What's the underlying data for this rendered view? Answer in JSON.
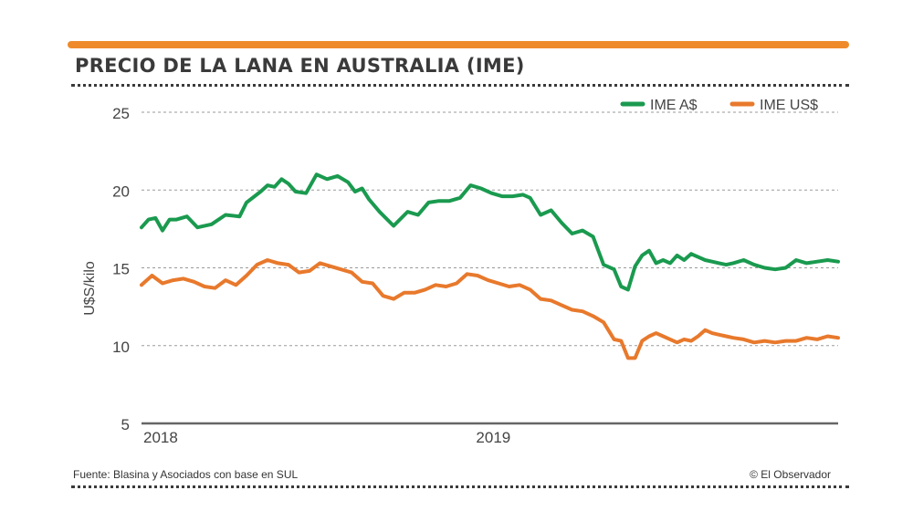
{
  "title": "PRECIO DE LA LANA EN AUSTRALIA (IME)",
  "source": "Fuente: Blasina y Asociados con base en SUL",
  "credit": "© El Observador",
  "colors": {
    "bar": "#ef8a2a",
    "green": "#1a9a4f",
    "orange": "#e8792c",
    "grid": "#9a9a9a",
    "axis": "#666666"
  },
  "chart_data": {
    "type": "line",
    "ylabel": "U$S/kilo",
    "xlabel": "",
    "ylim": [
      5,
      25
    ],
    "yticks": [
      5,
      10,
      15,
      20,
      25
    ],
    "xlim": [
      2018.0,
      2019.99
    ],
    "xticks": [
      {
        "value": 2018.0,
        "label": "2018"
      },
      {
        "value": 2019.0,
        "label": "2019"
      }
    ],
    "grid": true,
    "legend_position": "top-right",
    "series": [
      {
        "name": "IME A$",
        "color": "#1a9a4f",
        "x": [
          2018.0,
          2018.02,
          2018.04,
          2018.06,
          2018.08,
          2018.1,
          2018.13,
          2018.16,
          2018.2,
          2018.24,
          2018.28,
          2018.3,
          2018.34,
          2018.36,
          2018.38,
          2018.4,
          2018.42,
          2018.44,
          2018.47,
          2018.5,
          2018.53,
          2018.56,
          2018.59,
          2018.61,
          2018.63,
          2018.65,
          2018.68,
          2018.72,
          2018.76,
          2018.79,
          2018.82,
          2018.85,
          2018.88,
          2018.91,
          2018.94,
          2018.97,
          2019.0,
          2019.03,
          2019.06,
          2019.09,
          2019.11,
          2019.14,
          2019.17,
          2019.2,
          2019.23,
          2019.26,
          2019.29,
          2019.32,
          2019.35,
          2019.37,
          2019.39,
          2019.41,
          2019.43,
          2019.45,
          2019.47,
          2019.49,
          2019.51,
          2019.53,
          2019.55,
          2019.57,
          2019.59,
          2019.61,
          2019.63,
          2019.65,
          2019.67,
          2019.69,
          2019.72,
          2019.75,
          2019.78,
          2019.81,
          2019.84,
          2019.87,
          2019.9,
          2019.93,
          2019.96,
          2019.99
        ],
        "values": [
          17.6,
          18.1,
          18.2,
          17.4,
          18.1,
          18.1,
          18.3,
          17.6,
          17.8,
          18.4,
          18.3,
          19.2,
          19.9,
          20.3,
          20.2,
          20.7,
          20.4,
          19.9,
          19.8,
          21.0,
          20.7,
          20.9,
          20.5,
          19.9,
          20.1,
          19.4,
          18.6,
          17.7,
          18.6,
          18.4,
          19.2,
          19.3,
          19.3,
          19.5,
          20.3,
          20.1,
          19.8,
          19.6,
          19.6,
          19.7,
          19.5,
          18.4,
          18.7,
          17.9,
          17.2,
          17.4,
          17.0,
          15.2,
          14.9,
          13.8,
          13.6,
          15.1,
          15.8,
          16.1,
          15.3,
          15.5,
          15.3,
          15.8,
          15.5,
          15.9,
          15.7,
          15.5,
          15.4,
          15.3,
          15.2,
          15.3,
          15.5,
          15.2,
          15.0,
          14.9,
          15.0,
          15.5,
          15.3,
          15.4,
          15.5,
          15.4
        ]
      },
      {
        "name": "IME US$",
        "color": "#e8792c",
        "x": [
          2018.0,
          2018.03,
          2018.06,
          2018.09,
          2018.12,
          2018.15,
          2018.18,
          2018.21,
          2018.24,
          2018.27,
          2018.3,
          2018.33,
          2018.36,
          2018.39,
          2018.42,
          2018.45,
          2018.48,
          2018.51,
          2018.54,
          2018.57,
          2018.6,
          2018.63,
          2018.66,
          2018.69,
          2018.72,
          2018.75,
          2018.78,
          2018.81,
          2018.84,
          2018.87,
          2018.9,
          2018.93,
          2018.96,
          2018.99,
          2019.02,
          2019.05,
          2019.08,
          2019.11,
          2019.14,
          2019.17,
          2019.2,
          2019.23,
          2019.26,
          2019.29,
          2019.32,
          2019.35,
          2019.37,
          2019.39,
          2019.41,
          2019.43,
          2019.45,
          2019.47,
          2019.49,
          2019.51,
          2019.53,
          2019.55,
          2019.57,
          2019.59,
          2019.61,
          2019.63,
          2019.65,
          2019.67,
          2019.69,
          2019.72,
          2019.75,
          2019.78,
          2019.81,
          2019.84,
          2019.87,
          2019.9,
          2019.93,
          2019.96,
          2019.99
        ],
        "values": [
          13.9,
          14.5,
          14.0,
          14.2,
          14.3,
          14.1,
          13.8,
          13.7,
          14.2,
          13.9,
          14.5,
          15.2,
          15.5,
          15.3,
          15.2,
          14.7,
          14.8,
          15.3,
          15.1,
          14.9,
          14.7,
          14.1,
          14.0,
          13.2,
          13.0,
          13.4,
          13.4,
          13.6,
          13.9,
          13.8,
          14.0,
          14.6,
          14.5,
          14.2,
          14.0,
          13.8,
          13.9,
          13.6,
          13.0,
          12.9,
          12.6,
          12.3,
          12.2,
          11.9,
          11.5,
          10.4,
          10.3,
          9.2,
          9.2,
          10.3,
          10.6,
          10.8,
          10.6,
          10.4,
          10.2,
          10.4,
          10.3,
          10.6,
          11.0,
          10.8,
          10.7,
          10.6,
          10.5,
          10.4,
          10.2,
          10.3,
          10.2,
          10.3,
          10.3,
          10.5,
          10.4,
          10.6,
          10.5
        ]
      }
    ]
  }
}
